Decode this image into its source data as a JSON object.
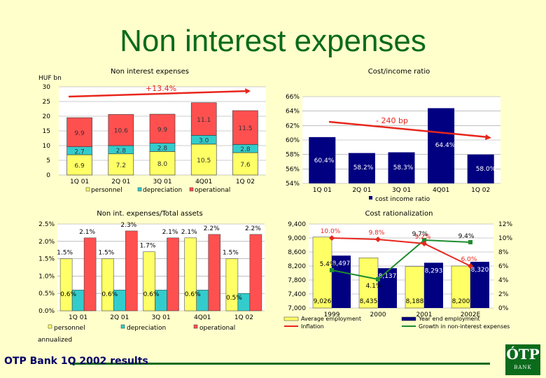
{
  "page": {
    "title": "Non interest expenses",
    "footer": "OTP Bank 1Q 2002 results",
    "logo_text": "ÓTP",
    "logo_sub": "BANK"
  },
  "colors": {
    "background": "#FFFFCC",
    "title": "#0B6B1B",
    "yellow": "#FFFF66",
    "teal": "#33CCCC",
    "red": "#FF5050",
    "navy": "#000080",
    "trend": "#E8261C",
    "green": "#1E8C2E"
  },
  "chart_data": [
    {
      "id": "c1",
      "type": "bar",
      "stacked": true,
      "title": "Non interest expenses",
      "ylabel": "HUF bn",
      "ylim": [
        0,
        30
      ],
      "yticks": [
        "0",
        "5",
        "10",
        "15",
        "20",
        "25",
        "30"
      ],
      "categories": [
        "1Q 01",
        "2Q 01",
        "3Q 01",
        "4Q01",
        "1Q 02"
      ],
      "series": [
        {
          "name": "personnel",
          "values": [
            6.9,
            7.2,
            8.0,
            10.5,
            7.6
          ],
          "labels": [
            "6.9",
            "7.2",
            "8.0",
            "10.5",
            "7.6"
          ]
        },
        {
          "name": "depreciation",
          "values": [
            2.7,
            2.8,
            2.8,
            3.0,
            2.8
          ],
          "labels": [
            "2.7",
            "2.8",
            "2.8",
            "3.0",
            "2.8"
          ]
        },
        {
          "name": "operational",
          "values": [
            9.9,
            10.6,
            9.9,
            11.1,
            11.5
          ],
          "labels": [
            "9.9",
            "10.6",
            "9.9",
            "11.1",
            "11.5"
          ]
        }
      ],
      "annotation": "+13.4%",
      "legend_position": "bottom"
    },
    {
      "id": "c2",
      "type": "bar",
      "title": "Cost/income ratio",
      "ylim": [
        54,
        66
      ],
      "yticks": [
        "54%",
        "56%",
        "58%",
        "60%",
        "62%",
        "64%",
        "66%"
      ],
      "categories": [
        "1Q 01",
        "2Q 01",
        "3Q 01",
        "4Q01",
        "1Q 02"
      ],
      "series": [
        {
          "name": "cost income ratio",
          "values": [
            60.4,
            58.2,
            58.3,
            64.4,
            58.0
          ],
          "labels": [
            "60.4%",
            "58.2%",
            "58.3%",
            "64.4%",
            "58.0%"
          ]
        }
      ],
      "annotation": "- 240 bp",
      "legend_position": "bottom"
    },
    {
      "id": "c3",
      "type": "bar",
      "title": "Non int. expenses/Total assets",
      "ylim": [
        0,
        2.5
      ],
      "yticks": [
        "0.0%",
        "0.5%",
        "1.0%",
        "1.5%",
        "2.0%",
        "2.5%"
      ],
      "categories": [
        "1Q 01",
        "2Q 01",
        "3Q 01",
        "4Q01",
        "1Q 02"
      ],
      "series": [
        {
          "name": "personnel",
          "values": [
            1.5,
            1.5,
            1.7,
            2.1,
            1.5
          ],
          "labels": [
            "1.5%",
            "1.5%",
            "1.7%",
            "2.1%",
            "1.5%"
          ]
        },
        {
          "name": "depreciation",
          "values": [
            0.6,
            0.6,
            0.6,
            0.6,
            0.5
          ],
          "labels": [
            "0.6%",
            "0.6%",
            "0.6%",
            "0.6%",
            "0.5%"
          ]
        },
        {
          "name": "operational",
          "values": [
            2.1,
            2.3,
            2.1,
            2.2,
            2.2
          ],
          "labels": [
            "2.1%",
            "2.3%",
            "2.1%",
            "2.2%",
            "2.2%"
          ]
        }
      ],
      "note": "annualized",
      "legend_position": "bottom"
    },
    {
      "id": "c4",
      "type": "bar",
      "title": "Cost rationalization",
      "ylim": [
        7000,
        9400
      ],
      "yticks": [
        "7,000",
        "7,400",
        "7,800",
        "8,200",
        "8,600",
        "9,000",
        "9,400"
      ],
      "y2lim": [
        0,
        12
      ],
      "y2ticks": [
        "0%",
        "2%",
        "4%",
        "6%",
        "8%",
        "10%",
        "12%"
      ],
      "categories": [
        "1999",
        "2000",
        "2001",
        "2002E"
      ],
      "series": [
        {
          "name": "Average employment",
          "values": [
            9026,
            8435,
            8188,
            8200
          ],
          "labels": [
            "9,026",
            "8,435",
            "8,188",
            "8,200"
          ]
        },
        {
          "name": "Year end employment",
          "values": [
            8497,
            8137,
            8293,
            8320
          ],
          "labels": [
            "8,497",
            "8,137",
            "8,293",
            "8,320"
          ]
        },
        {
          "name": "Inflation",
          "axis": "right",
          "values": [
            10.0,
            9.8,
            9.2,
            6.0
          ],
          "labels": [
            "10.0%",
            "9.8%",
            "9.2%",
            "6.0%"
          ]
        },
        {
          "name": "Growth in non-interest expenses",
          "axis": "right",
          "values": [
            5.4,
            4.1,
            9.7,
            9.4
          ],
          "labels": [
            "5.4%",
            "4.1%",
            "9.7%",
            "9.4%"
          ]
        }
      ],
      "legend_position": "bottom"
    }
  ]
}
